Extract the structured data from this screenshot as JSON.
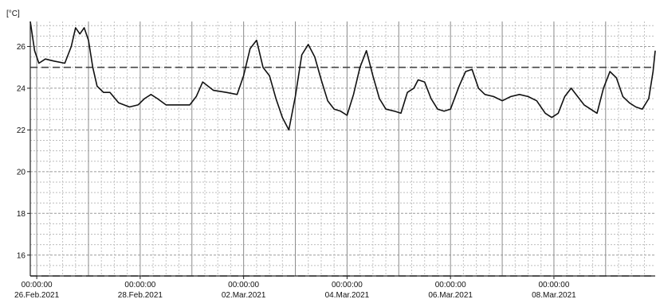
{
  "chart_data": {
    "type": "line",
    "unit_label": "[°C]",
    "ylim": [
      15,
      27.2
    ],
    "y_ticks": [
      16,
      18,
      20,
      22,
      24,
      26
    ],
    "y_tick_labels": [
      "16",
      "18",
      "20",
      "22",
      "24",
      "26"
    ],
    "x_range_days": [
      "2021-02-25T21:00",
      "2021-03-09T23:00"
    ],
    "x_ticks": [
      {
        "date": "2021-02-26T00:00",
        "time": "00:00:00",
        "label": "26.Feb.2021"
      },
      {
        "date": "2021-02-28T00:00",
        "time": "00:00:00",
        "label": "28.Feb.2021"
      },
      {
        "date": "2021-03-02T00:00",
        "time": "00:00:00",
        "label": "02.Mar.2021"
      },
      {
        "date": "2021-03-04T00:00",
        "time": "00:00:00",
        "label": "04.Mar.2021"
      },
      {
        "date": "2021-03-06T00:00",
        "time": "00:00:00",
        "label": "06.Mar.2021"
      },
      {
        "date": "2021-03-08T00:00",
        "time": "00:00:00",
        "label": "08.Mar.2021"
      }
    ],
    "grid": true,
    "limit_lines": [
      25,
      15
    ],
    "series": [
      {
        "color": "#111111",
        "points": [
          [
            "2021-02-25T21:00",
            27.2
          ],
          [
            "2021-02-25T23:00",
            25.8
          ],
          [
            "2021-02-26T01:00",
            25.2
          ],
          [
            "2021-02-26T04:00",
            25.4
          ],
          [
            "2021-02-26T08:00",
            25.3
          ],
          [
            "2021-02-26T13:00",
            25.2
          ],
          [
            "2021-02-26T16:00",
            26.0
          ],
          [
            "2021-02-26T18:00",
            26.9
          ],
          [
            "2021-02-26T20:00",
            26.6
          ],
          [
            "2021-02-26T22:00",
            26.9
          ],
          [
            "2021-02-27T00:00",
            26.3
          ],
          [
            "2021-02-27T02:00",
            25.0
          ],
          [
            "2021-02-27T04:00",
            24.1
          ],
          [
            "2021-02-27T07:00",
            23.8
          ],
          [
            "2021-02-27T10:00",
            23.8
          ],
          [
            "2021-02-27T14:00",
            23.3
          ],
          [
            "2021-02-27T19:00",
            23.1
          ],
          [
            "2021-02-27T23:00",
            23.2
          ],
          [
            "2021-02-28T02:00",
            23.5
          ],
          [
            "2021-02-28T05:00",
            23.7
          ],
          [
            "2021-02-28T08:00",
            23.5
          ],
          [
            "2021-02-28T12:00",
            23.2
          ],
          [
            "2021-02-28T18:00",
            23.2
          ],
          [
            "2021-02-28T23:00",
            23.2
          ],
          [
            "2021-03-01T02:00",
            23.6
          ],
          [
            "2021-03-01T05:00",
            24.3
          ],
          [
            "2021-03-01T10:00",
            23.9
          ],
          [
            "2021-03-01T16:00",
            23.8
          ],
          [
            "2021-03-01T21:00",
            23.7
          ],
          [
            "2021-03-02T00:00",
            24.6
          ],
          [
            "2021-03-02T03:00",
            25.9
          ],
          [
            "2021-03-02T06:00",
            26.3
          ],
          [
            "2021-03-02T09:00",
            25.0
          ],
          [
            "2021-03-02T12:00",
            24.6
          ],
          [
            "2021-03-02T15:00",
            23.5
          ],
          [
            "2021-03-02T18:00",
            22.6
          ],
          [
            "2021-03-02T21:00",
            22.0
          ],
          [
            "2021-03-03T00:00",
            23.6
          ],
          [
            "2021-03-03T03:00",
            25.6
          ],
          [
            "2021-03-03T06:00",
            26.1
          ],
          [
            "2021-03-03T09:00",
            25.5
          ],
          [
            "2021-03-03T12:00",
            24.4
          ],
          [
            "2021-03-03T15:00",
            23.4
          ],
          [
            "2021-03-03T18:00",
            23.0
          ],
          [
            "2021-03-03T21:00",
            22.9
          ],
          [
            "2021-03-04T00:00",
            22.7
          ],
          [
            "2021-03-04T03:00",
            23.7
          ],
          [
            "2021-03-04T06:00",
            25.0
          ],
          [
            "2021-03-04T09:00",
            25.8
          ],
          [
            "2021-03-04T12:00",
            24.6
          ],
          [
            "2021-03-04T15:00",
            23.5
          ],
          [
            "2021-03-04T18:00",
            23.0
          ],
          [
            "2021-03-04T22:00",
            22.9
          ],
          [
            "2021-03-05T01:00",
            22.8
          ],
          [
            "2021-03-05T04:00",
            23.8
          ],
          [
            "2021-03-05T07:00",
            24.0
          ],
          [
            "2021-03-05T09:00",
            24.4
          ],
          [
            "2021-03-05T12:00",
            24.3
          ],
          [
            "2021-03-05T15:00",
            23.5
          ],
          [
            "2021-03-05T18:00",
            23.0
          ],
          [
            "2021-03-05T21:00",
            22.9
          ],
          [
            "2021-03-06T00:00",
            23.0
          ],
          [
            "2021-03-06T04:00",
            24.1
          ],
          [
            "2021-03-06T07:00",
            24.8
          ],
          [
            "2021-03-06T10:00",
            24.9
          ],
          [
            "2021-03-06T13:00",
            24.0
          ],
          [
            "2021-03-06T16:00",
            23.7
          ],
          [
            "2021-03-06T20:00",
            23.6
          ],
          [
            "2021-03-07T00:00",
            23.4
          ],
          [
            "2021-03-07T04:00",
            23.6
          ],
          [
            "2021-03-07T08:00",
            23.7
          ],
          [
            "2021-03-07T12:00",
            23.6
          ],
          [
            "2021-03-07T16:00",
            23.4
          ],
          [
            "2021-03-07T20:00",
            22.8
          ],
          [
            "2021-03-07T23:00",
            22.6
          ],
          [
            "2021-03-08T02:00",
            22.8
          ],
          [
            "2021-03-08T05:00",
            23.6
          ],
          [
            "2021-03-08T08:00",
            24.0
          ],
          [
            "2021-03-08T11:00",
            23.6
          ],
          [
            "2021-03-08T14:00",
            23.2
          ],
          [
            "2021-03-08T17:00",
            23.0
          ],
          [
            "2021-03-08T20:00",
            22.8
          ],
          [
            "2021-03-08T23:00",
            24.0
          ],
          [
            "2021-03-09T02:00",
            24.8
          ],
          [
            "2021-03-09T05:00",
            24.5
          ],
          [
            "2021-03-09T08:00",
            23.6
          ],
          [
            "2021-03-09T11:00",
            23.3
          ],
          [
            "2021-03-09T14:00",
            23.1
          ],
          [
            "2021-03-09T17:00",
            23.0
          ],
          [
            "2021-03-09T20:00",
            23.5
          ],
          [
            "2021-03-09T22:00",
            24.8
          ],
          [
            "2021-03-09T23:00",
            25.8
          ]
        ]
      }
    ]
  }
}
